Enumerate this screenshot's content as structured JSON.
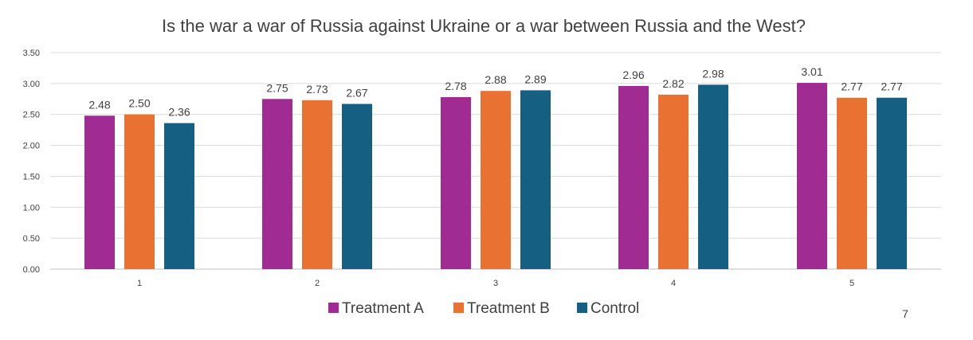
{
  "page_number": "7",
  "chart_data": {
    "type": "bar",
    "title": "Is the war a war of Russia against Ukraine or a war between Russia and the West?",
    "xlabel": "",
    "ylabel": "",
    "categories": [
      "1",
      "2",
      "3",
      "4",
      "5"
    ],
    "ylim": [
      0,
      3.5
    ],
    "yticks": [
      "0.00",
      "0.50",
      "1.00",
      "1.50",
      "2.00",
      "2.50",
      "3.00",
      "3.50"
    ],
    "ytick_values": [
      0,
      0.5,
      1.0,
      1.5,
      2.0,
      2.5,
      3.0,
      3.5
    ],
    "grid": true,
    "legend_position": "bottom",
    "series": [
      {
        "name": "Treatment A",
        "color": "#A02B93",
        "values": [
          2.48,
          2.75,
          2.78,
          2.96,
          3.01
        ],
        "labels": [
          "2.48",
          "2.75",
          "2.78",
          "2.96",
          "3.01"
        ]
      },
      {
        "name": "Treatment B",
        "color": "#E97132",
        "values": [
          2.5,
          2.73,
          2.88,
          2.82,
          2.77
        ],
        "labels": [
          "2.50",
          "2.73",
          "2.88",
          "2.82",
          "2.77"
        ]
      },
      {
        "name": "Control",
        "color": "#156082",
        "values": [
          2.36,
          2.67,
          2.89,
          2.98,
          2.77
        ],
        "labels": [
          "2.36",
          "2.67",
          "2.89",
          "2.98",
          "2.77"
        ]
      }
    ]
  }
}
